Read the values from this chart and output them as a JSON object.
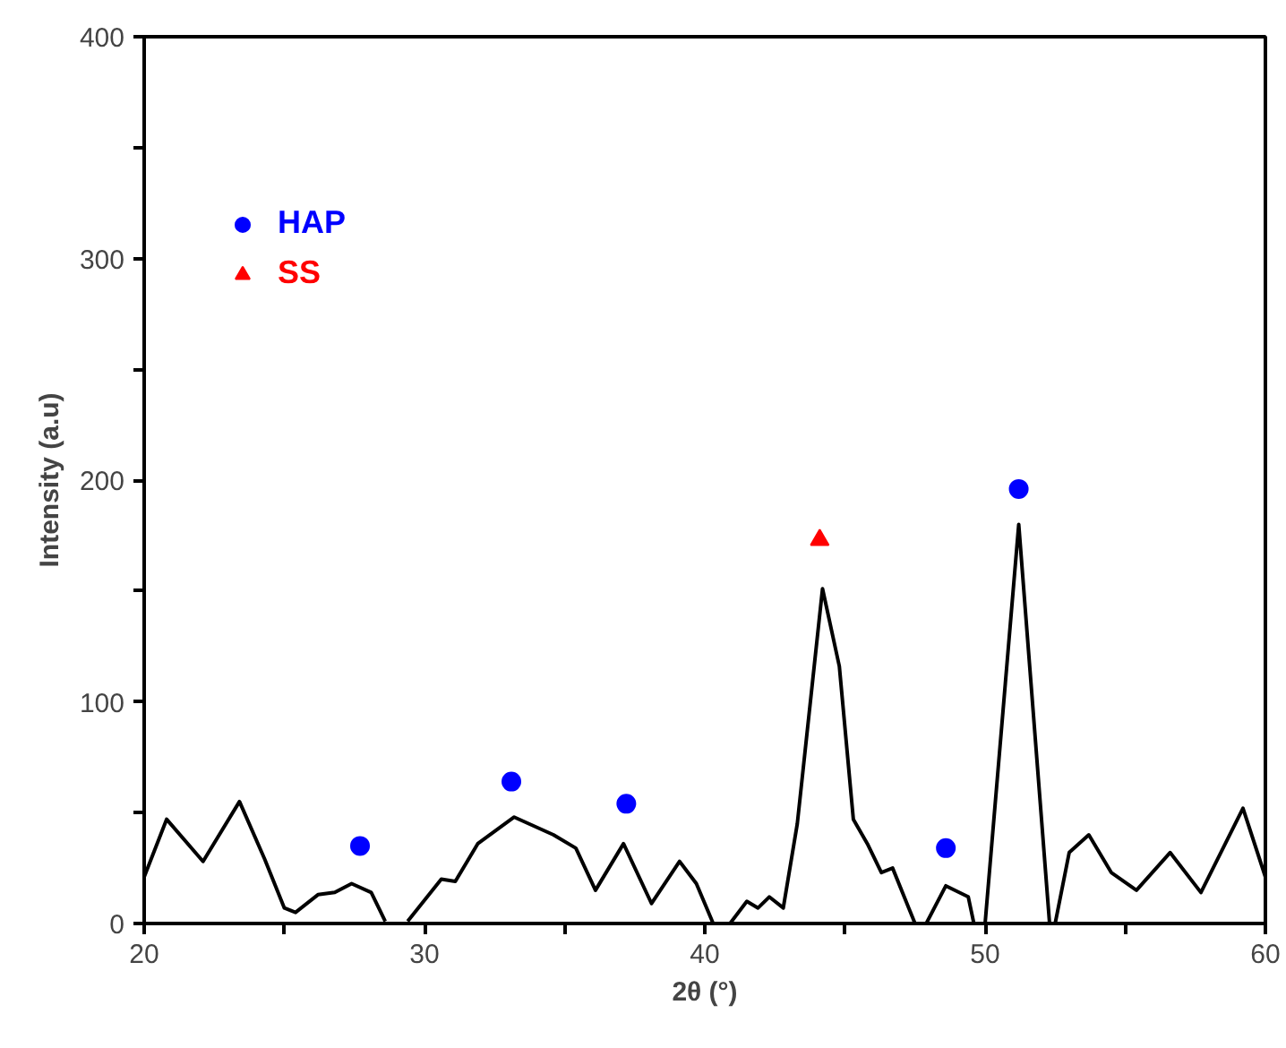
{
  "chart_data": {
    "type": "line",
    "xlabel": "2θ (°)",
    "ylabel": "Intensity (a.u)",
    "xlim": [
      20,
      60
    ],
    "ylim": [
      0,
      400
    ],
    "xticks": [
      20,
      {
        "value": 25,
        "label": null
      },
      30,
      {
        "value": 35,
        "label": null
      },
      40,
      {
        "value": 45,
        "label": null
      },
      50,
      {
        "value": 55,
        "label": null
      },
      60
    ],
    "yticks": [
      0,
      {
        "value": 50,
        "label": null
      },
      100,
      {
        "value": 150,
        "label": null
      },
      200,
      {
        "value": 250,
        "label": null
      },
      300,
      {
        "value": 350,
        "label": null
      },
      400
    ],
    "grid": false,
    "legend": "top left",
    "series": [
      {
        "color": "#000000",
        "x": [
          20,
          20.8,
          22.1,
          23.4,
          24.3,
          25,
          25.4,
          26.2,
          26.8,
          27.4,
          28.1,
          28.6,
          29,
          29.4,
          30.6,
          31.1,
          31.9,
          33.2,
          34.6,
          35.4,
          36.1,
          37.1,
          38.1,
          39.1,
          39.7,
          40.3,
          40.9,
          41.5,
          41.9,
          42.3,
          42.8,
          43.3,
          44.2,
          44.8,
          45.3,
          45.8,
          46.3,
          46.7,
          47.5,
          47.7,
          47.9,
          48.6,
          49.4,
          49.6,
          49.8,
          50.0,
          51.2,
          52.3,
          52.4,
          52.5,
          53.0,
          53.7,
          54.5,
          55.4,
          56.6,
          57.7,
          59.2,
          60
        ],
        "values": [
          21,
          47,
          28,
          55,
          29,
          7,
          5,
          13,
          14,
          18,
          14,
          1,
          null,
          1,
          20,
          19,
          36,
          48,
          40,
          34,
          15,
          36,
          9,
          28,
          18,
          0,
          0,
          10,
          7,
          12,
          7,
          45,
          151,
          116,
          47,
          36,
          23,
          25,
          0,
          null,
          0,
          17,
          12,
          0,
          null,
          0,
          180,
          0,
          null,
          0,
          32,
          40,
          23,
          15,
          32,
          14,
          52,
          21
        ]
      },
      {
        "type": "scatter",
        "name": "HAP",
        "color": "#0000ff",
        "marker": "circle",
        "x": [
          27.7,
          33.1,
          37.2,
          48.6,
          51.2
        ],
        "values": [
          35,
          64,
          54,
          34,
          196
        ]
      },
      {
        "type": "scatter",
        "name": "SS",
        "color": "#ff0000",
        "marker": "triangle",
        "x": [
          44.1
        ],
        "values": [
          173
        ]
      }
    ]
  }
}
